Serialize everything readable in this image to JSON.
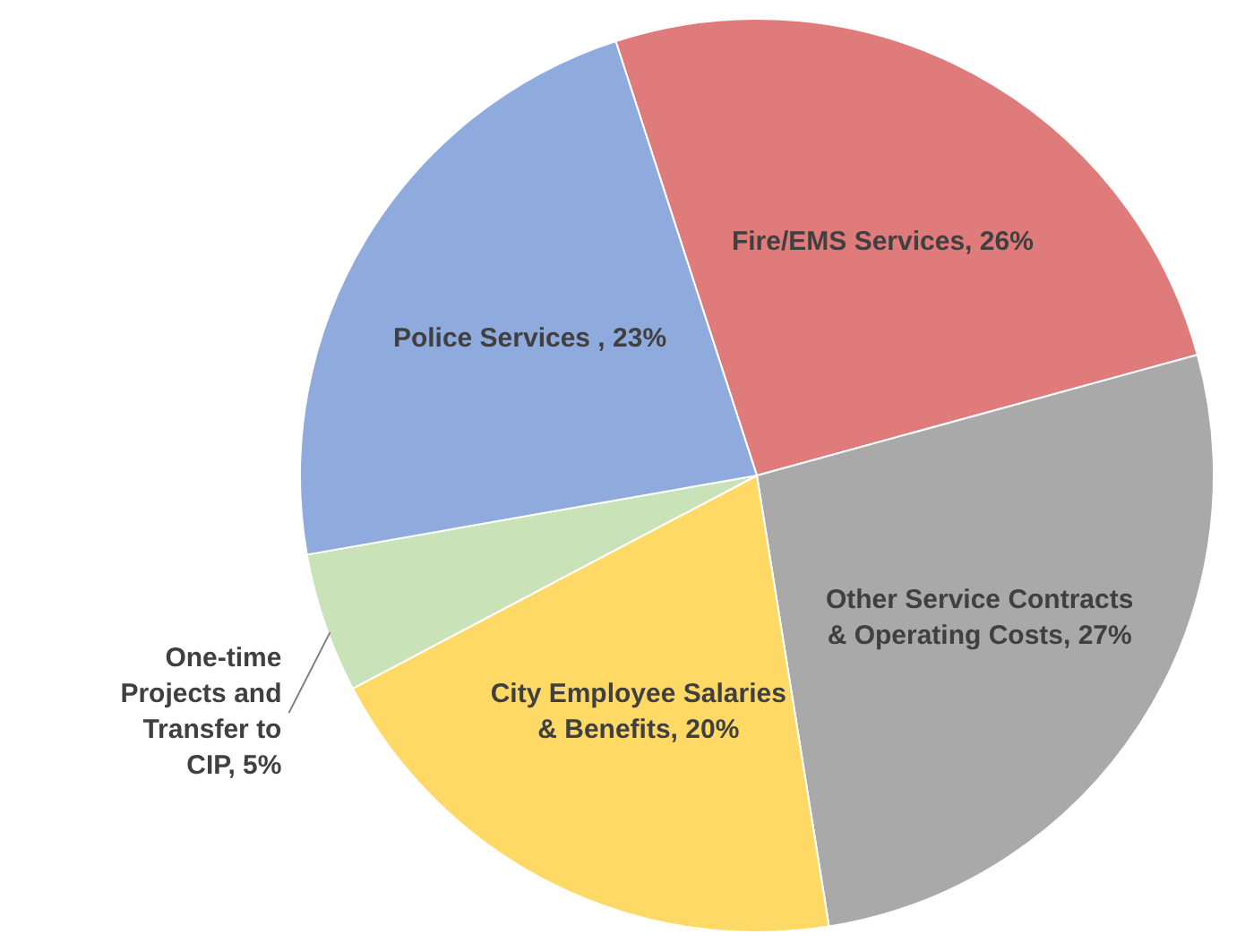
{
  "chart_data": {
    "type": "pie",
    "categories": [
      "Fire/EMS Services",
      "Other Service Contracts & Operating Costs",
      "City Employee Salaries & Benefits",
      "One-time Projects and Transfer to CIP",
      "Police Services "
    ],
    "values": [
      26,
      27,
      20,
      5,
      23
    ],
    "colors": [
      "#e07b7b",
      "#a9a9a9",
      "#ffd966",
      "#c9e2b8",
      "#8faadc"
    ],
    "value_labels": [
      "26%",
      "27%",
      "20%",
      "5%",
      "23%"
    ],
    "legend": false
  }
}
